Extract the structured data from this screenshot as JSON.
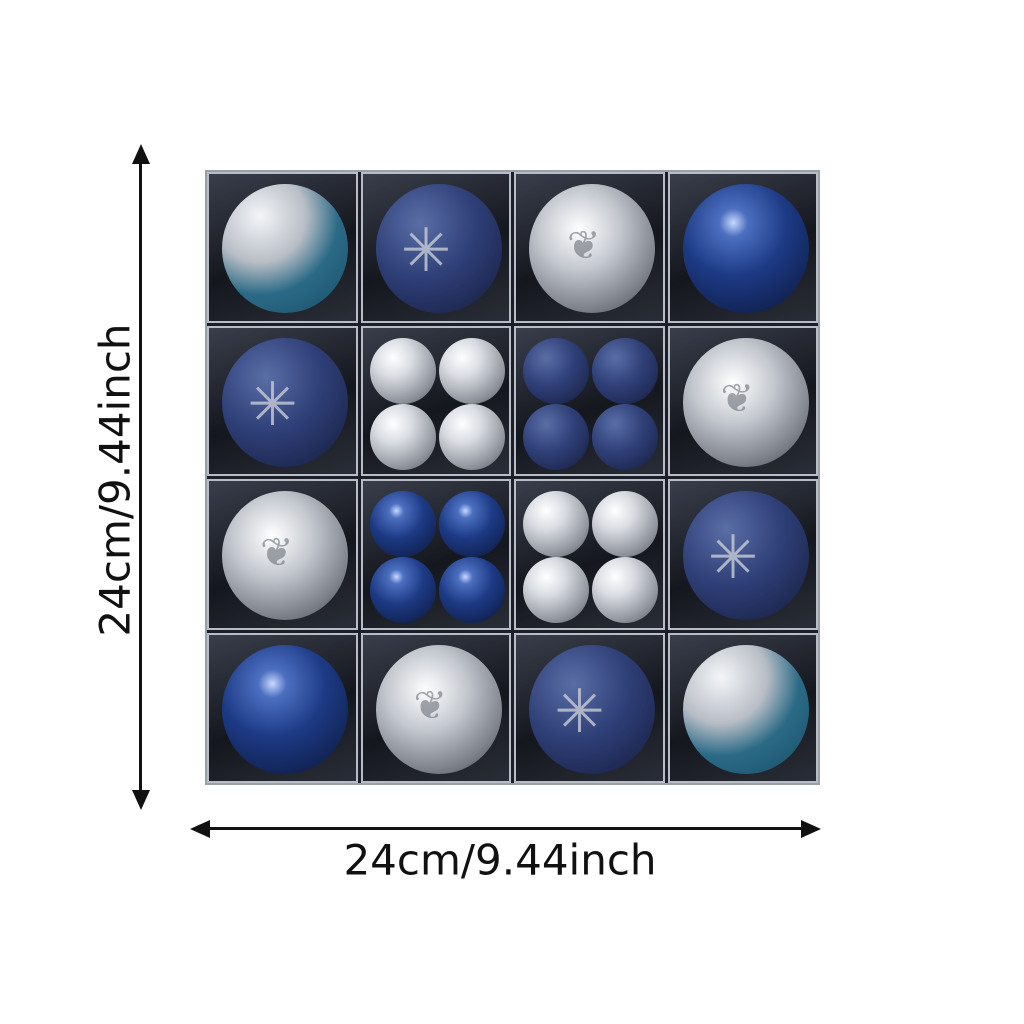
{
  "dimensions": {
    "height_label": "24cm/9.44inch",
    "width_label": "24cm/9.44inch"
  },
  "colors": {
    "blue": "#2f3f78",
    "silver": "#c5c9d0",
    "box": "#1c1f2a"
  },
  "ornament_grid": [
    [
      "glitter-big",
      "blue-matte-snowflake",
      "silver-leaf",
      "blue-shiny"
    ],
    [
      "blue-matte-snowflake",
      "silver-small-4",
      "blue-matte-small-4",
      "silver-leaf"
    ],
    [
      "silver-leaf",
      "blue-shiny-small-4",
      "silver-small-4",
      "blue-matte-snowflake"
    ],
    [
      "blue-shiny",
      "silver-leaf",
      "blue-matte-snowflake",
      "glitter-big"
    ]
  ]
}
